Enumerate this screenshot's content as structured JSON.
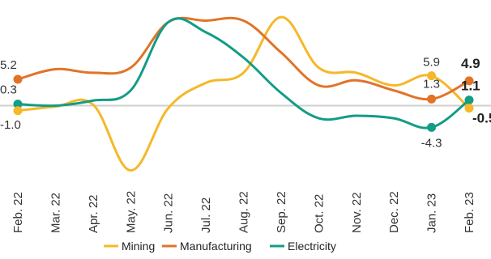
{
  "chart_data": {
    "type": "line",
    "categories": [
      "Feb. 22",
      "Mar. 22",
      "Apr. 22",
      "May. 22",
      "Jun. 22",
      "Jul. 22",
      "Aug. 22",
      "Sep. 22",
      "Oct. 22",
      "Nov. 22",
      "Dec. 22",
      "Jan. 23",
      "Feb. 23"
    ],
    "series": [
      {
        "name": "Mining",
        "color": "#f5b829",
        "values": [
          -1.0,
          -0.2,
          0.2,
          -12.8,
          -0.5,
          4.5,
          6.5,
          17.5,
          7.5,
          6.5,
          4.0,
          5.9,
          -0.5
        ]
      },
      {
        "name": "Manufacturing",
        "color": "#e27327",
        "values": [
          5.2,
          7.2,
          6.5,
          7.5,
          16.5,
          16.8,
          16.8,
          10.5,
          4.0,
          5.0,
          3.0,
          1.3,
          4.9
        ]
      },
      {
        "name": "Electricity",
        "color": "#139c86",
        "values": [
          0.3,
          0.0,
          1.0,
          3.0,
          16.5,
          14.5,
          9.5,
          2.5,
          -2.5,
          -2.0,
          -2.5,
          -4.3,
          1.1
        ]
      }
    ],
    "point_labels": [
      {
        "series": 1,
        "index": 0,
        "text": "5.2",
        "bold": false
      },
      {
        "series": 2,
        "index": 0,
        "text": "0.3",
        "bold": false
      },
      {
        "series": 0,
        "index": 0,
        "text": "-1.0",
        "bold": false
      },
      {
        "series": 0,
        "index": 11,
        "text": "5.9",
        "bold": false
      },
      {
        "series": 1,
        "index": 11,
        "text": "1.3",
        "bold": false
      },
      {
        "series": 2,
        "index": 11,
        "text": "-4.3",
        "bold": false
      },
      {
        "series": 1,
        "index": 12,
        "text": "4.9",
        "bold": true
      },
      {
        "series": 2,
        "index": 12,
        "text": "1.1",
        "bold": true
      },
      {
        "series": 0,
        "index": 12,
        "text": "-0.5",
        "bold": true
      }
    ],
    "ylim": [
      -14,
      18
    ],
    "grid": false,
    "zero_line": true,
    "legend_position": "bottom"
  }
}
